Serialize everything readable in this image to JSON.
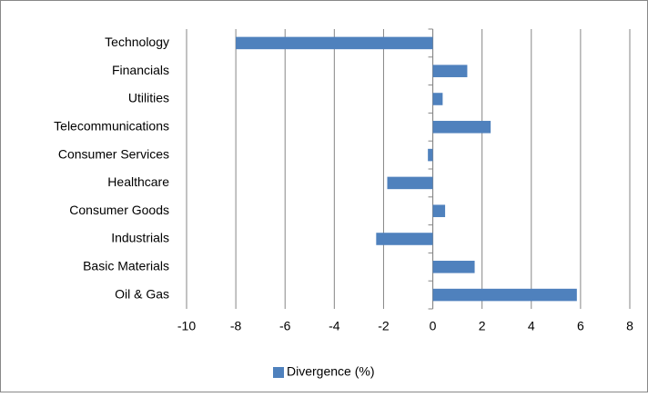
{
  "chart_data": {
    "type": "barh",
    "categories": [
      "Technology",
      "Financials",
      "Utilities",
      "Telecommunications",
      "Consumer Services",
      "Healthcare",
      "Consumer Goods",
      "Industrials",
      "Basic Materials",
      "Oil & Gas"
    ],
    "series": [
      {
        "name": "Divergence (%)",
        "color": "#4f81bd",
        "values": [
          -8.0,
          1.4,
          0.4,
          2.35,
          -0.2,
          -1.85,
          0.5,
          -2.3,
          1.7,
          5.85
        ]
      }
    ],
    "xlim": [
      -10,
      8
    ],
    "xticks": [
      -10,
      -8,
      -6,
      -4,
      -2,
      0,
      2,
      4,
      6,
      8
    ],
    "grid": true,
    "legend": "bottom"
  }
}
